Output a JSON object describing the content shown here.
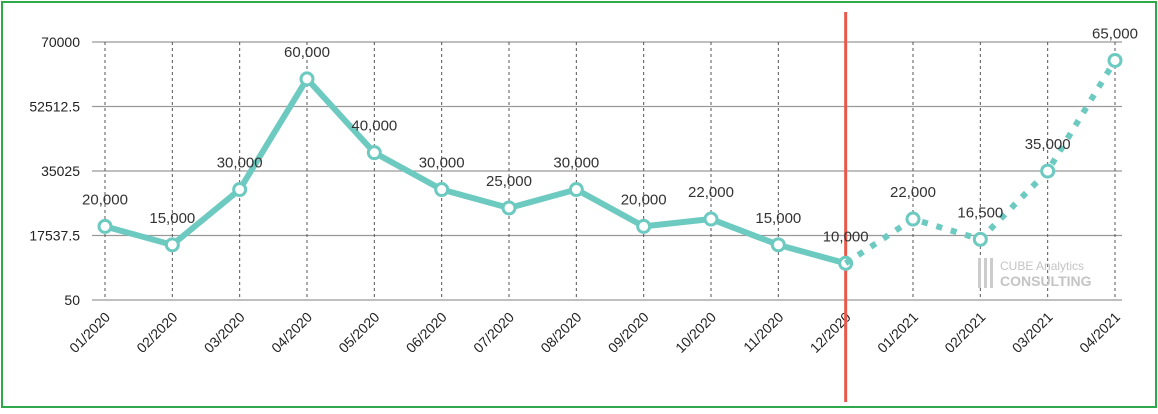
{
  "chart_data": {
    "type": "line",
    "categories": [
      "01/2020",
      "02/2020",
      "03/2020",
      "04/2020",
      "05/2020",
      "06/2020",
      "07/2020",
      "08/2020",
      "09/2020",
      "10/2020",
      "11/2020",
      "12/2020",
      "01/2021",
      "02/2021",
      "03/2021",
      "04/2021"
    ],
    "series": [
      {
        "color": "#6ccac0",
        "style": "solid",
        "values": [
          20000,
          15000,
          30000,
          60000,
          40000,
          30000,
          25000,
          30000,
          20000,
          22000,
          15000,
          10000,
          null,
          null,
          null,
          null
        ],
        "value_labels": [
          "20,000",
          "15,000",
          "30,000",
          "60,000",
          "40,000",
          "30,000",
          "25,000",
          "30,000",
          "20,000",
          "22,000",
          "15,000",
          "10,000",
          null,
          null,
          null,
          null
        ]
      },
      {
        "color": "#6ccac0",
        "style": "dotted",
        "values": [
          null,
          null,
          null,
          null,
          null,
          null,
          null,
          null,
          null,
          null,
          null,
          10000,
          22000,
          16500,
          35000,
          65000
        ],
        "value_labels": [
          null,
          null,
          null,
          null,
          null,
          null,
          null,
          null,
          null,
          null,
          null,
          null,
          "22,000",
          "16,500",
          "35,000",
          "65,000"
        ]
      }
    ],
    "ylim": [
      50,
      70000
    ],
    "yticks": [
      50,
      17537.5,
      35025,
      52512.5,
      70000
    ],
    "grid": true,
    "marker_line": {
      "category": "12/2020",
      "color": "#e8584a"
    },
    "watermark": [
      "CUBE Analytics",
      "CONSULTING"
    ]
  }
}
